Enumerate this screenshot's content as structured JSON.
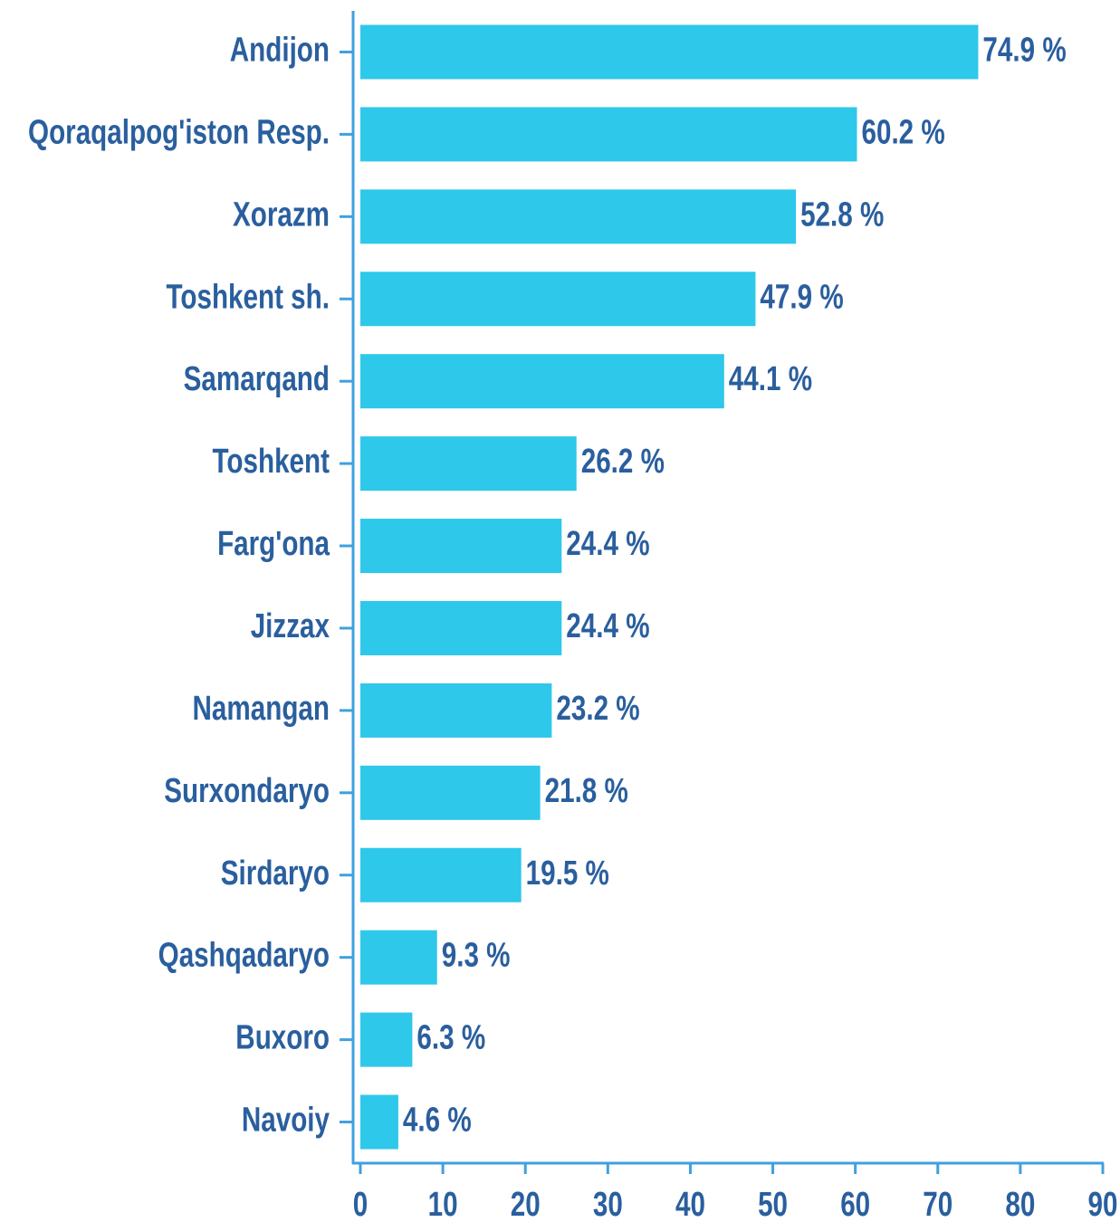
{
  "chart_data": {
    "type": "bar",
    "orientation": "horizontal",
    "categories": [
      "Andijon",
      "Qoraqalpog'iston Resp.",
      "Xorazm",
      "Toshkent sh.",
      "Samarqand",
      "Toshkent",
      "Farg'ona",
      "Jizzax",
      "Namangan",
      "Surxondaryo",
      "Sirdaryo",
      "Qashqadaryo",
      "Buxoro",
      "Navoiy"
    ],
    "values": [
      74.9,
      60.2,
      52.8,
      47.9,
      44.1,
      26.2,
      24.4,
      24.4,
      23.2,
      21.8,
      19.5,
      9.3,
      6.3,
      4.6
    ],
    "value_labels": [
      "74.9 %",
      "60.2 %",
      "52.8 %",
      "47.9 %",
      "44.1 %",
      "26.2 %",
      "24.4 %",
      "24.4 %",
      "23.2 %",
      "21.8 %",
      "19.5 %",
      "9.3 %",
      "6.3 %",
      "4.6 %"
    ],
    "color": "#2ec8ea",
    "xlim": [
      0,
      90
    ],
    "xticks": [
      0,
      10,
      20,
      30,
      40,
      50,
      60,
      70,
      80,
      90
    ]
  }
}
